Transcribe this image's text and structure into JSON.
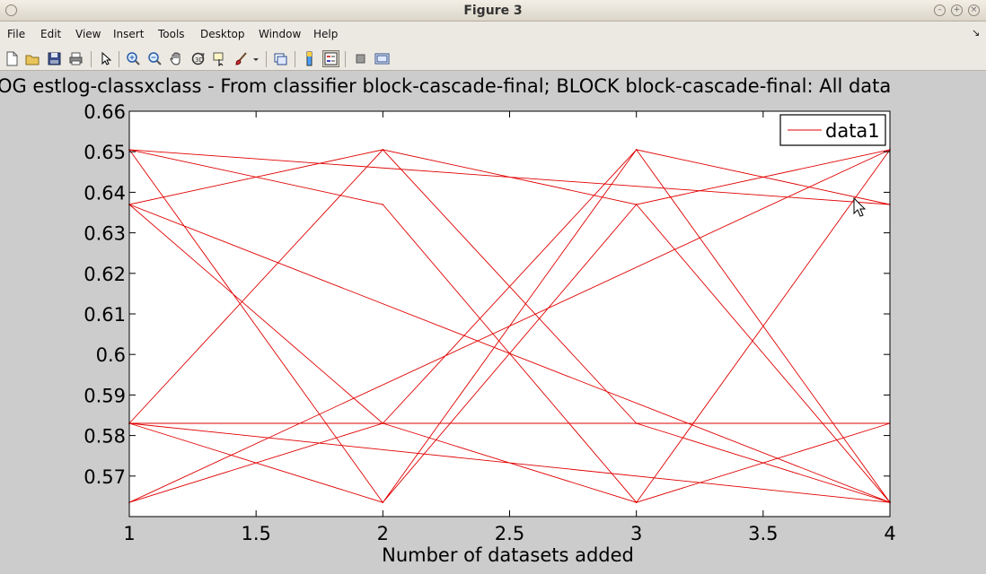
{
  "window": {
    "title": "Figure 3"
  },
  "menubar": {
    "items": [
      "File",
      "Edit",
      "View",
      "Insert",
      "Tools",
      "Desktop",
      "Window",
      "Help"
    ]
  },
  "toolbar": {
    "icons": [
      "new-figure-icon",
      "open-file-icon",
      "save-icon",
      "print-icon",
      "edit-plot-arrow-icon",
      "zoom-in-icon",
      "zoom-out-icon",
      "pan-hand-icon",
      "rotate-3d-icon",
      "data-cursor-icon",
      "brush-icon",
      "brush-dropdown-icon",
      "link-plot-icon",
      "colorbar-icon",
      "legend-icon",
      "hide-plot-tools-icon",
      "show-plot-tools-icon"
    ]
  },
  "colors": {
    "line": "#e00000",
    "axes_bg": "#ffffff",
    "figure_bg": "#cccccc"
  },
  "chart_data": {
    "type": "line",
    "title": "LOG estlog-classxclass - From classifier block-cascade-final; BLOCK block-cascade-final: All data",
    "xlabel": "Number of datasets added",
    "ylabel": "",
    "xlim": [
      1,
      4
    ],
    "ylim": [
      0.56,
      0.66
    ],
    "xticks": [
      "1",
      "1.5",
      "2",
      "2.5",
      "3",
      "3.5",
      "4"
    ],
    "yticks": [
      "0.57",
      "0.58",
      "0.59",
      "0.6",
      "0.61",
      "0.62",
      "0.63",
      "0.64",
      "0.65",
      "0.66"
    ],
    "grid": false,
    "legend": {
      "entries": [
        "data1"
      ],
      "position": "top-right"
    },
    "series": [
      {
        "name": "data1",
        "color": "#e00000",
        "x": [
          1,
          2,
          3,
          4,
          1,
          2,
          3,
          4,
          1,
          2,
          3,
          4,
          1,
          2,
          3,
          4,
          1,
          2,
          3,
          4,
          1,
          2,
          3,
          4,
          1,
          2,
          3,
          4
        ],
        "y": [
          0.6505,
          0.5635,
          0.6505,
          0.5635,
          0.637,
          0.6505,
          0.583,
          0.5635,
          0.583,
          0.5635,
          0.637,
          0.6505,
          0.5635,
          0.583,
          0.6505,
          0.637,
          0.6505,
          0.637,
          0.5635,
          0.583,
          0.583,
          0.6505,
          0.637,
          0.5635,
          0.637,
          0.583,
          0.5635,
          0.6505
        ]
      }
    ]
  }
}
